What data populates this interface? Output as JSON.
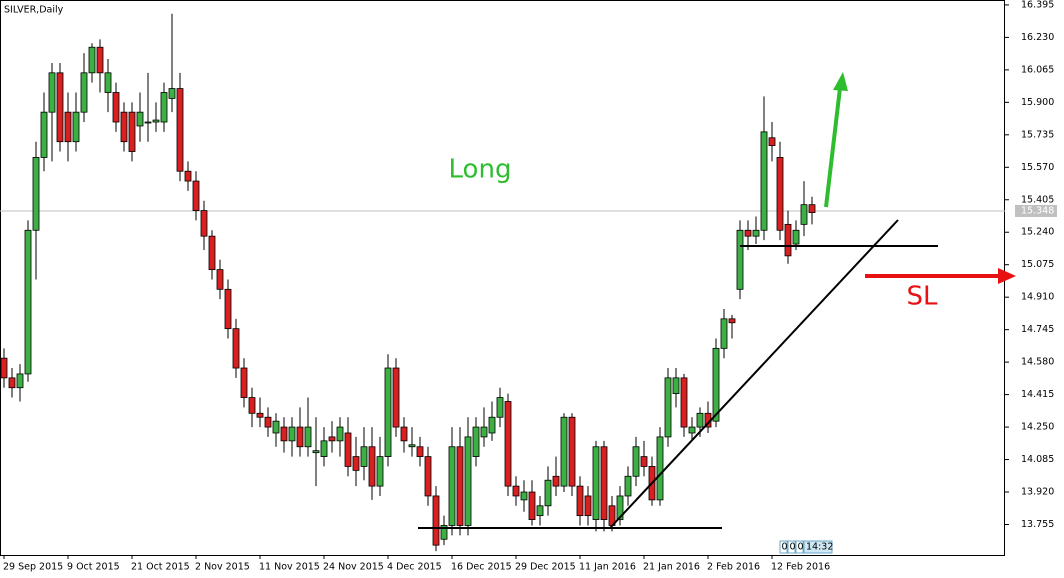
{
  "chart_data": {
    "type": "candlestick",
    "title": "SILVER,Daily",
    "categories": [
      "29 Sep 2015",
      null,
      null,
      null,
      null,
      null,
      null,
      null,
      "9 Oct 2015",
      null,
      null,
      null,
      null,
      null,
      null,
      null,
      "21 Oct 2015",
      null,
      null,
      null,
      null,
      null,
      null,
      null,
      "2 Nov 2015",
      null,
      null,
      null,
      null,
      null,
      null,
      null,
      "11 Nov 2015",
      null,
      null,
      null,
      null,
      null,
      null,
      null,
      "24 Nov 2015",
      null,
      null,
      null,
      null,
      null,
      null,
      null,
      "4 Dec 2015",
      null,
      null,
      null,
      null,
      null,
      null,
      null,
      "16 Dec 2015",
      null,
      null,
      null,
      null,
      null,
      null,
      null,
      "29 Dec 2015",
      null,
      null,
      null,
      null,
      null,
      null,
      null,
      "11 Jan 2016",
      null,
      null,
      null,
      null,
      null,
      null,
      null,
      "21 Jan 2016",
      null,
      null,
      null,
      null,
      null,
      null,
      null,
      "2 Feb 2016",
      null,
      null,
      null,
      null,
      null,
      null,
      null,
      "12 Feb 2016",
      null,
      null,
      null,
      null,
      null
    ],
    "open": [
      14.6,
      14.5,
      14.45,
      14.52,
      15.25,
      15.62,
      15.85,
      16.05,
      15.85,
      15.7,
      15.85,
      16.05,
      16.18,
      15.95,
      15.95,
      15.85,
      15.85,
      15.78,
      15.8,
      15.8,
      15.8,
      15.92,
      15.97,
      15.55,
      15.5,
      15.35,
      15.22,
      15.05,
      14.95,
      14.75,
      14.55,
      14.4,
      14.32,
      14.3,
      14.22,
      14.25,
      14.18,
      14.25,
      14.15,
      14.12,
      14.1,
      14.2,
      14.18,
      14.22,
      14.1,
      14.05,
      14.15,
      13.95,
      14.1,
      14.55,
      14.25,
      14.15,
      14.15,
      14.1,
      13.9,
      13.68,
      13.75,
      14.15,
      13.75,
      14.1,
      14.2,
      14.22,
      14.3,
      14.38,
      13.95,
      13.88,
      13.92,
      13.8,
      13.85,
      14.0,
      13.95,
      14.3,
      13.95,
      13.9,
      13.78,
      14.15,
      13.85,
      13.78,
      13.9,
      14.0,
      14.1,
      14.05,
      13.88,
      14.2,
      14.42,
      14.5,
      14.22,
      14.25,
      14.32,
      14.28,
      14.65,
      14.8,
      14.95,
      15.25,
      15.22,
      15.25,
      15.72,
      15.62,
      15.28,
      15.18,
      15.28,
      15.38
    ],
    "high": [
      14.65,
      14.55,
      14.57,
      15.3,
      15.7,
      15.95,
      16.1,
      16.1,
      15.95,
      15.95,
      16.15,
      16.2,
      16.22,
      16.12,
      16.0,
      15.9,
      15.9,
      15.95,
      16.05,
      15.9,
      16.0,
      16.35,
      16.05,
      15.6,
      15.55,
      15.4,
      15.25,
      15.1,
      15.0,
      14.8,
      14.6,
      14.45,
      14.4,
      14.35,
      14.32,
      14.3,
      14.3,
      14.35,
      14.4,
      14.3,
      14.25,
      14.28,
      14.3,
      14.3,
      14.2,
      14.25,
      14.25,
      14.2,
      14.62,
      14.6,
      14.3,
      14.25,
      14.2,
      14.15,
      13.95,
      13.8,
      14.25,
      14.25,
      14.3,
      14.3,
      14.35,
      14.38,
      14.45,
      14.42,
      14.0,
      13.98,
      13.98,
      13.9,
      14.05,
      14.1,
      14.32,
      14.32,
      14.0,
      13.95,
      14.18,
      14.18,
      13.9,
      13.95,
      14.05,
      14.2,
      14.18,
      14.1,
      14.25,
      14.55,
      14.55,
      14.52,
      14.3,
      14.35,
      14.38,
      14.7,
      14.85,
      14.82,
      15.3,
      15.3,
      15.32,
      15.93,
      15.8,
      15.7,
      15.35,
      15.3,
      15.5,
      15.42
    ],
    "low": [
      14.45,
      14.4,
      14.38,
      14.48,
      15.0,
      15.55,
      15.6,
      15.65,
      15.6,
      15.65,
      15.8,
      16.0,
      15.95,
      15.85,
      15.75,
      15.65,
      15.6,
      15.7,
      15.7,
      15.75,
      15.75,
      15.85,
      15.5,
      15.45,
      15.3,
      15.15,
      15.0,
      14.9,
      14.7,
      14.5,
      14.35,
      14.25,
      14.25,
      14.2,
      14.15,
      14.12,
      14.1,
      14.1,
      14.1,
      13.95,
      14.05,
      14.12,
      14.1,
      14.0,
      13.95,
      13.98,
      13.88,
      13.9,
      14.05,
      14.2,
      14.12,
      14.1,
      14.05,
      13.85,
      13.62,
      13.65,
      13.7,
      13.7,
      13.7,
      14.05,
      14.15,
      14.18,
      14.25,
      13.9,
      13.85,
      13.82,
      13.75,
      13.75,
      13.8,
      13.9,
      13.92,
      13.9,
      13.75,
      13.75,
      13.72,
      13.72,
      13.72,
      13.75,
      13.85,
      13.95,
      14.0,
      13.85,
      13.85,
      14.15,
      14.35,
      14.2,
      14.18,
      14.2,
      14.22,
      14.25,
      14.6,
      14.7,
      14.9,
      15.15,
      15.18,
      15.2,
      15.6,
      15.2,
      15.08,
      15.15,
      15.22,
      15.28
    ],
    "close": [
      14.5,
      14.45,
      14.52,
      15.25,
      15.62,
      15.85,
      16.05,
      15.7,
      15.7,
      15.85,
      16.05,
      16.18,
      16.05,
      16.05,
      15.8,
      15.7,
      15.65,
      15.85,
      15.8,
      15.81,
      15.95,
      15.97,
      15.55,
      15.5,
      15.35,
      15.22,
      15.05,
      14.95,
      14.75,
      14.55,
      14.4,
      14.32,
      14.3,
      14.25,
      14.28,
      14.18,
      14.25,
      14.15,
      14.25,
      14.13,
      14.18,
      14.18,
      14.25,
      14.05,
      14.03,
      14.15,
      13.95,
      14.1,
      14.55,
      14.25,
      14.18,
      14.16,
      14.1,
      13.9,
      13.65,
      13.75,
      14.15,
      13.75,
      14.2,
      14.25,
      14.25,
      14.3,
      14.4,
      13.95,
      13.9,
      13.92,
      13.78,
      13.85,
      13.98,
      13.95,
      14.3,
      13.95,
      13.8,
      13.8,
      14.15,
      13.78,
      13.75,
      13.9,
      14.0,
      14.15,
      14.05,
      13.88,
      14.2,
      14.5,
      14.5,
      14.25,
      14.25,
      14.32,
      14.25,
      14.65,
      14.8,
      14.78,
      15.25,
      15.22,
      15.25,
      15.75,
      15.68,
      15.25,
      15.12,
      15.25,
      15.38,
      15.34
    ],
    "up_color": "#3cb043",
    "down_color": "#d82020",
    "ylim": [
      13.6,
      16.42
    ],
    "yticks": [
      16.395,
      {
        "value": 16.23,
        "label": "16.230"
      },
      16.065,
      {
        "value": 15.9,
        "label": "15.900"
      },
      15.735,
      {
        "value": 15.57,
        "label": "15.570"
      },
      15.405,
      {
        "value": 15.24,
        "label": "15.240"
      },
      15.075,
      {
        "value": 14.91,
        "label": "14.910"
      },
      14.745,
      {
        "value": 14.58,
        "label": "14.580"
      },
      14.415,
      {
        "value": 14.25,
        "label": "14.250"
      },
      14.085,
      {
        "value": 13.92,
        "label": "13.920"
      },
      13.755
    ],
    "current_price": 15.348,
    "annotations": [
      "Long",
      "SL"
    ],
    "counters": [
      0,
      0,
      0
    ],
    "clock": "14:32"
  }
}
